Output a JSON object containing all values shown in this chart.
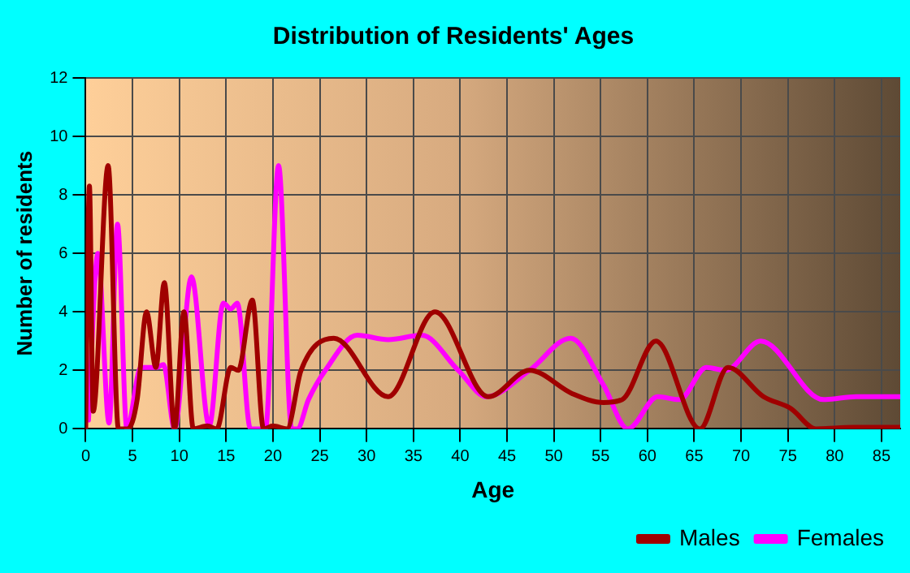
{
  "chart_data": {
    "type": "line",
    "title": "Distribution of Residents' Ages",
    "xlabel": "Age",
    "ylabel": "Number of residents",
    "xlim": [
      0,
      87
    ],
    "xticks": [
      0,
      5,
      10,
      15,
      20,
      25,
      30,
      35,
      40,
      45,
      50,
      55,
      60,
      65,
      70,
      75,
      80,
      85
    ],
    "ylim": [
      0,
      12
    ],
    "yticks": [
      0,
      2,
      4,
      6,
      8,
      10,
      12
    ],
    "grid": true,
    "legend": "bottom right",
    "marker": "none",
    "line_style": "solid",
    "series": [
      {
        "name": "Males",
        "color": "#a00000",
        "x": [
          0,
          0.4,
          0.8,
          2.4,
          3.5,
          4.5,
          5.5,
          6.5,
          7.5,
          8.4,
          9.5,
          10.5,
          11.5,
          13,
          14,
          15.5,
          16.3,
          17.8,
          19,
          20,
          21.5,
          23,
          26.5,
          32.3,
          37.3,
          43,
          47.4,
          52,
          55.3,
          57.3,
          60.9,
          65.6,
          68.6,
          72.4,
          75.3,
          78,
          82,
          87
        ],
        "values": [
          0,
          8.3,
          0.6,
          9,
          0,
          0,
          1,
          4,
          2.1,
          5,
          0,
          4,
          0,
          0.1,
          0,
          2.1,
          2,
          4.4,
          0,
          0.1,
          0,
          2,
          3.1,
          1.1,
          4,
          1.1,
          2,
          1.2,
          0.9,
          1,
          3,
          0,
          2.1,
          1.1,
          0.7,
          0,
          0.05,
          0.05
        ]
      },
      {
        "name": "Females",
        "color": "#ff00ff",
        "x": [
          0.3,
          1.3,
          2.5,
          3.4,
          4.4,
          5.9,
          7.6,
          8.3,
          9.5,
          11.3,
          13.2,
          14.7,
          15.5,
          16.2,
          17.6,
          19.2,
          20.6,
          22,
          22.6,
          23.8,
          25.6,
          29,
          32.3,
          35.9,
          39.8,
          42.8,
          47.4,
          51.8,
          55.3,
          57.9,
          61.1,
          63.4,
          66.3,
          68.3,
          72.1,
          78.8,
          82.3,
          87
        ],
        "values": [
          0.3,
          6,
          0.2,
          7,
          0,
          2.1,
          2.1,
          2.2,
          0,
          5.2,
          0.1,
          4.3,
          4.1,
          4.3,
          0,
          0,
          9,
          0,
          0,
          1,
          2,
          3.2,
          3.05,
          3.2,
          2,
          1.1,
          2,
          3.1,
          1.5,
          0,
          1.1,
          1,
          2.1,
          2,
          3,
          1,
          1.1,
          1.1
        ]
      }
    ]
  }
}
